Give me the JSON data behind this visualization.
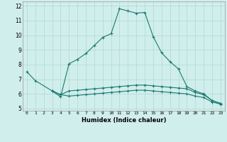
{
  "xlabel": "Humidex (Indice chaleur)",
  "ylabel": "",
  "background_color": "#d0eeec",
  "grid_color": "#afd8d5",
  "line_color": "#1a7a6e",
  "xlim": [
    -0.5,
    23.5
  ],
  "ylim": [
    4.85,
    12.3
  ],
  "xtick_labels": [
    "0",
    "1",
    "2",
    "3",
    "4",
    "5",
    "6",
    "7",
    "8",
    "9",
    "10",
    "11",
    "12",
    "13",
    "14",
    "15",
    "16",
    "17",
    "18",
    "19",
    "20",
    "21",
    "22",
    "23"
  ],
  "ytick_values": [
    5,
    6,
    7,
    8,
    9,
    10,
    11,
    12
  ],
  "series": [
    {
      "x": [
        0,
        1,
        3,
        4,
        5,
        6,
        7,
        8,
        9,
        10,
        11,
        12,
        13,
        14,
        15,
        16,
        17,
        18,
        19,
        20,
        21,
        22,
        23
      ],
      "y": [
        7.5,
        6.9,
        6.2,
        5.8,
        8.05,
        8.35,
        8.75,
        9.3,
        9.85,
        10.1,
        11.8,
        11.65,
        11.5,
        11.55,
        9.9,
        8.8,
        8.2,
        7.7,
        6.5,
        6.2,
        6.0,
        5.55,
        5.35
      ]
    },
    {
      "x": [
        3,
        4,
        5,
        6,
        7,
        8,
        9,
        10,
        11,
        12,
        13,
        14,
        15,
        16,
        17,
        18,
        19,
        20,
        21,
        22,
        23
      ],
      "y": [
        6.2,
        5.95,
        6.2,
        6.25,
        6.3,
        6.35,
        6.4,
        6.45,
        6.5,
        6.55,
        6.6,
        6.6,
        6.55,
        6.5,
        6.45,
        6.4,
        6.35,
        6.1,
        5.95,
        5.55,
        5.35
      ]
    },
    {
      "x": [
        3,
        4,
        5,
        6,
        7,
        8,
        9,
        10,
        11,
        12,
        13,
        14,
        15,
        16,
        17,
        18,
        19,
        20,
        21,
        22,
        23
      ],
      "y": [
        6.2,
        5.95,
        5.85,
        5.9,
        5.95,
        6.0,
        6.05,
        6.1,
        6.15,
        6.2,
        6.25,
        6.25,
        6.2,
        6.15,
        6.1,
        6.05,
        6.0,
        5.85,
        5.75,
        5.45,
        5.3
      ]
    }
  ]
}
